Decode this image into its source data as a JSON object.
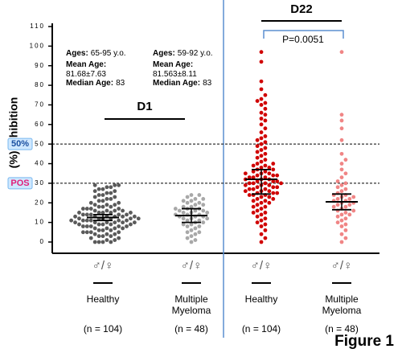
{
  "chart_data": {
    "type": "dot",
    "y_label": "(%) Inhibition",
    "ylim": [
      0,
      110
    ],
    "yticks": [
      0,
      10,
      20,
      30,
      40,
      50,
      60,
      70,
      80,
      90,
      100,
      110
    ],
    "ref_lines": [
      {
        "value": 50,
        "label": "50%"
      },
      {
        "value": 30,
        "label": "POS"
      }
    ],
    "periods": [
      {
        "label": "D1",
        "groups": [
          0,
          1
        ]
      },
      {
        "label": "D22",
        "groups": [
          2,
          3
        ]
      }
    ],
    "p_value": "P=0.0051",
    "annotations": [
      {
        "ages_label": "Ages:",
        "ages": "65-95 y.o.",
        "mean_label": "Mean Age:",
        "mean": "81.68±7.63",
        "median_label": "Median Age:",
        "median": "83"
      },
      {
        "ages_label": "Ages:",
        "ages": "59-92 y.o.",
        "mean_label": "Mean Age:",
        "mean": "81.563±8.11",
        "median_label": "Median Age:",
        "median": "83"
      }
    ],
    "sex_symbol": "♂/♀",
    "figure_label": "Figure 1",
    "groups": [
      {
        "name": [
          "Healthy"
        ],
        "n_label": "(n = 104)",
        "color": "#5a5a5a",
        "center": 12.5,
        "ci": [
          11,
          14
        ],
        "values": [
          0,
          0,
          0,
          0,
          1,
          1,
          2,
          2,
          3,
          3,
          3,
          4,
          4,
          4,
          5,
          5,
          5,
          5,
          6,
          6,
          6,
          7,
          7,
          7,
          7,
          8,
          8,
          8,
          8,
          8,
          9,
          9,
          9,
          9,
          9,
          10,
          10,
          10,
          10,
          10,
          10,
          11,
          11,
          11,
          11,
          11,
          11,
          12,
          12,
          12,
          12,
          12,
          12,
          13,
          13,
          13,
          13,
          13,
          13,
          14,
          14,
          14,
          14,
          14,
          15,
          15,
          15,
          15,
          15,
          16,
          16,
          16,
          16,
          17,
          17,
          17,
          17,
          18,
          18,
          18,
          19,
          19,
          19,
          20,
          20,
          21,
          21,
          22,
          22,
          23,
          23,
          24,
          24,
          25,
          25,
          26,
          26,
          27,
          27,
          28,
          28,
          29,
          29,
          29
        ]
      },
      {
        "name": [
          "Multiple",
          "Myeloma"
        ],
        "n_label": "(n = 48)",
        "color": "#a8a8a8",
        "center": 13.5,
        "ci": [
          10,
          17
        ],
        "values": [
          0,
          1,
          2,
          3,
          4,
          5,
          5,
          6,
          7,
          8,
          8,
          9,
          9,
          10,
          10,
          11,
          11,
          12,
          12,
          12,
          13,
          13,
          13,
          14,
          14,
          14,
          15,
          15,
          15,
          16,
          16,
          16,
          17,
          17,
          17,
          18,
          18,
          19,
          19,
          20,
          20,
          21,
          21,
          22,
          22,
          23,
          24,
          24
        ]
      },
      {
        "name": [
          "Healthy"
        ],
        "n_label": "(n = 104)",
        "color": "#d00000",
        "center": 32,
        "ci": [
          24.5,
          37
        ],
        "values": [
          0,
          2,
          4,
          6,
          8,
          9,
          10,
          11,
          12,
          13,
          14,
          15,
          15,
          16,
          17,
          18,
          18,
          19,
          20,
          20,
          21,
          21,
          22,
          22,
          23,
          23,
          24,
          24,
          24,
          25,
          25,
          25,
          26,
          26,
          26,
          27,
          27,
          27,
          28,
          28,
          28,
          29,
          29,
          29,
          30,
          30,
          30,
          30,
          31,
          31,
          31,
          32,
          32,
          32,
          33,
          33,
          33,
          34,
          34,
          34,
          35,
          35,
          35,
          36,
          36,
          37,
          37,
          38,
          38,
          39,
          39,
          40,
          40,
          41,
          42,
          43,
          44,
          45,
          46,
          47,
          48,
          49,
          50,
          51,
          52,
          53,
          54,
          56,
          58,
          60,
          62,
          63,
          65,
          66,
          68,
          70,
          71,
          72,
          73,
          75,
          78,
          82,
          92,
          97
        ]
      },
      {
        "name": [
          "Multiple",
          "Myeloma"
        ],
        "n_label": "(n = 48)",
        "color": "#f08585",
        "center": 20.5,
        "ci": [
          16.5,
          24.5
        ],
        "values": [
          0,
          2,
          4,
          6,
          8,
          9,
          10,
          11,
          12,
          13,
          14,
          14,
          15,
          16,
          16,
          17,
          18,
          18,
          19,
          19,
          20,
          20,
          21,
          21,
          22,
          22,
          23,
          23,
          24,
          24,
          25,
          26,
          27,
          28,
          29,
          30,
          31,
          33,
          35,
          37,
          40,
          42,
          45,
          52,
          58,
          62,
          65,
          97
        ]
      }
    ]
  }
}
